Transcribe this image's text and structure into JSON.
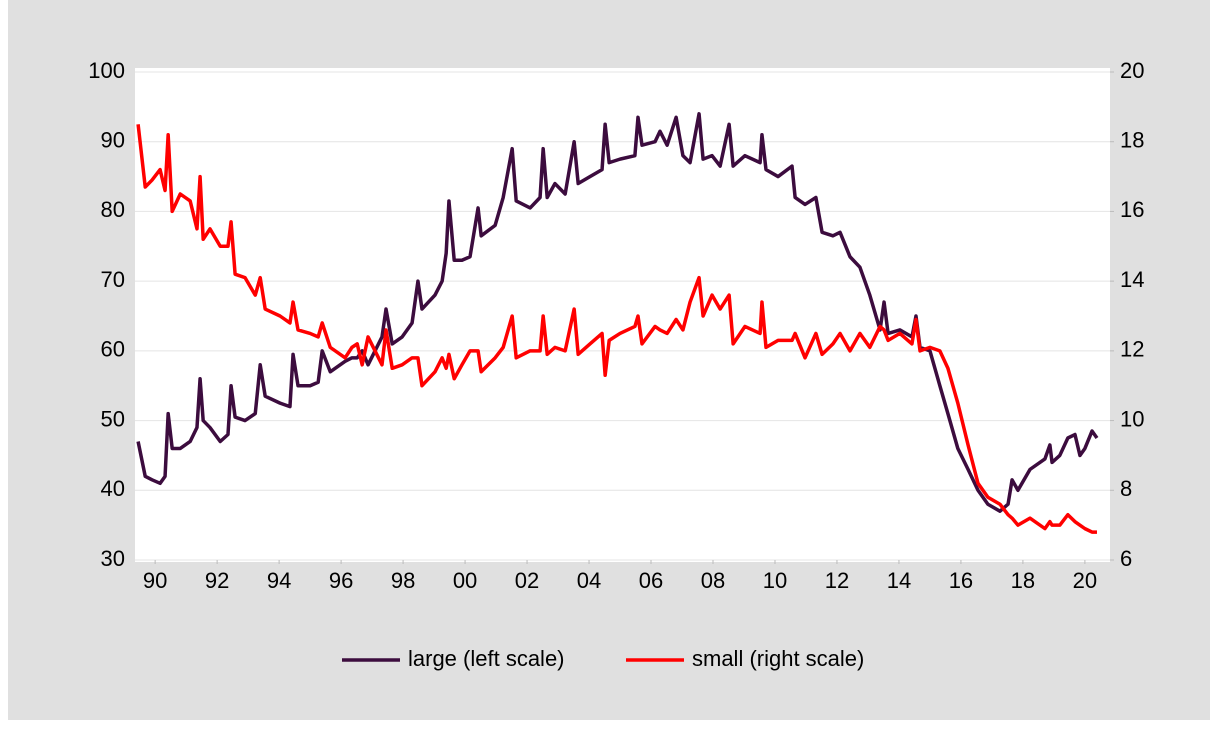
{
  "chart_data": {
    "type": "line",
    "x": [
      1989.45,
      1989.68,
      1989.9,
      1990.16,
      1990.32,
      1990.42,
      1990.55,
      1990.81,
      1991.13,
      1991.35,
      1991.45,
      1991.55,
      1991.77,
      1992.1,
      1992.35,
      1992.45,
      1992.58,
      1992.9,
      1993.23,
      1993.39,
      1993.55,
      1994.03,
      1994.35,
      1994.45,
      1994.61,
      1995.0,
      1995.26,
      1995.39,
      1995.65,
      1996.13,
      1996.35,
      1996.52,
      1996.68,
      1996.87,
      1997.32,
      1997.45,
      1997.65,
      1997.97,
      1998.29,
      1998.48,
      1998.61,
      1999.03,
      1999.26,
      1999.39,
      1999.48,
      1999.65,
      1999.9,
      2000.16,
      2000.42,
      2000.52,
      2000.97,
      2001.23,
      2001.52,
      2001.65,
      2002.1,
      2002.42,
      2002.52,
      2002.65,
      2002.9,
      2003.23,
      2003.52,
      2003.65,
      2004.03,
      2004.42,
      2004.52,
      2004.65,
      2005.0,
      2005.48,
      2005.58,
      2005.71,
      2006.13,
      2006.29,
      2006.52,
      2006.81,
      2007.03,
      2007.26,
      2007.55,
      2007.68,
      2007.97,
      2008.23,
      2008.52,
      2008.65,
      2009.03,
      2009.52,
      2009.58,
      2009.71,
      2010.1,
      2010.55,
      2010.65,
      2010.97,
      2011.32,
      2011.52,
      2011.87,
      2012.1,
      2012.42,
      2012.74,
      2013.06,
      2013.39,
      2013.52,
      2013.65,
      2014.03,
      2014.42,
      2014.55,
      2014.68,
      2015.0,
      2015.32,
      2015.58,
      2015.9,
      2016.23,
      2016.55,
      2016.87,
      2017.26,
      2017.52,
      2017.65,
      2017.84,
      2018.23,
      2018.71,
      2018.87,
      2018.94,
      2019.19,
      2019.45,
      2019.68,
      2019.84,
      2020.0,
      2020.23,
      2020.39
    ],
    "series": [
      {
        "name": "large (left scale)",
        "color": "#3c0c3e",
        "axis": "y",
        "values": [
          47,
          42,
          41.5,
          41,
          42,
          51,
          46,
          46,
          47,
          49,
          56,
          50,
          49,
          47,
          48,
          55,
          50.5,
          50,
          51,
          58,
          53.5,
          52.5,
          52,
          59.5,
          55,
          55,
          55.5,
          60,
          57,
          58.5,
          59,
          59,
          60,
          58,
          62,
          66,
          61,
          62,
          64,
          70,
          66,
          68,
          70,
          74,
          81.5,
          73,
          73,
          73.5,
          80.5,
          76.5,
          78,
          82,
          89,
          81.5,
          80.5,
          82,
          89,
          82,
          84,
          82.5,
          90,
          84,
          85,
          86,
          92.5,
          87,
          87.5,
          88,
          93.5,
          89.5,
          90,
          91.5,
          89.5,
          93.5,
          88,
          87,
          94,
          87.5,
          88,
          86.5,
          92.5,
          86.5,
          88,
          87,
          91,
          86,
          85,
          86.5,
          82,
          81,
          82,
          77,
          76.5,
          77,
          73.5,
          72,
          68,
          63,
          67,
          62.5,
          63,
          62,
          65,
          60.5,
          60,
          55,
          51,
          46,
          43,
          40,
          38,
          37,
          38,
          41.5,
          40,
          43,
          44.5,
          46.5,
          44,
          45,
          47.5,
          48,
          45,
          46,
          48.5,
          47.5
        ]
      },
      {
        "name": "small (right scale)",
        "color": "#ff0000",
        "axis": "y2",
        "values": [
          18.5,
          16.7,
          16.9,
          17.2,
          16.6,
          18.2,
          16.0,
          16.5,
          16.3,
          15.5,
          17.0,
          15.2,
          15.5,
          15.0,
          15.0,
          15.7,
          14.2,
          14.1,
          13.6,
          14.1,
          13.2,
          13.0,
          12.8,
          13.4,
          12.6,
          12.5,
          12.4,
          12.8,
          12.1,
          11.8,
          12.1,
          12.2,
          11.6,
          12.4,
          11.6,
          12.6,
          11.5,
          11.6,
          11.8,
          11.8,
          11.0,
          11.4,
          11.8,
          11.5,
          11.9,
          11.2,
          11.6,
          12.0,
          12.0,
          11.4,
          11.8,
          12.1,
          13.0,
          11.8,
          12.0,
          12.0,
          13.0,
          11.9,
          12.1,
          12.0,
          13.2,
          11.9,
          12.2,
          12.5,
          11.3,
          12.3,
          12.5,
          12.7,
          13.0,
          12.2,
          12.7,
          12.6,
          12.5,
          12.9,
          12.6,
          13.4,
          14.1,
          13.0,
          13.6,
          13.2,
          13.6,
          12.2,
          12.7,
          12.5,
          13.4,
          12.1,
          12.3,
          12.3,
          12.5,
          11.8,
          12.5,
          11.9,
          12.2,
          12.5,
          12.0,
          12.5,
          12.1,
          12.7,
          12.6,
          12.3,
          12.5,
          12.2,
          12.9,
          12.0,
          12.1,
          12.0,
          11.5,
          10.5,
          9.3,
          8.2,
          7.8,
          7.6,
          7.3,
          7.2,
          7.0,
          7.2,
          6.9,
          7.1,
          7.0,
          7.0,
          7.3,
          7.1,
          7.0,
          6.9,
          6.8,
          6.8
        ]
      }
    ],
    "xlim": [
      1989.35,
      2020.81
    ],
    "xticks": [
      {
        "value": 1990,
        "label": "90"
      },
      {
        "value": 1992,
        "label": "92"
      },
      {
        "value": 1994,
        "label": "94"
      },
      {
        "value": 1996,
        "label": "96"
      },
      {
        "value": 1998,
        "label": "98"
      },
      {
        "value": 2000,
        "label": "00"
      },
      {
        "value": 2002,
        "label": "02"
      },
      {
        "value": 2004,
        "label": "04"
      },
      {
        "value": 2006,
        "label": "06"
      },
      {
        "value": 2008,
        "label": "08"
      },
      {
        "value": 2010,
        "label": "10"
      },
      {
        "value": 2012,
        "label": "12"
      },
      {
        "value": 2014,
        "label": "14"
      },
      {
        "value": 2016,
        "label": "16"
      },
      {
        "value": 2018,
        "label": "18"
      },
      {
        "value": 2020,
        "label": "20"
      }
    ],
    "ylim": [
      30,
      100
    ],
    "yticks": [
      30,
      40,
      50,
      60,
      70,
      80,
      90,
      100
    ],
    "y2lim": [
      6,
      20
    ],
    "y2ticks": [
      6,
      8,
      10,
      12,
      14,
      16,
      18,
      20
    ],
    "grid": true,
    "legend": "bottom"
  }
}
